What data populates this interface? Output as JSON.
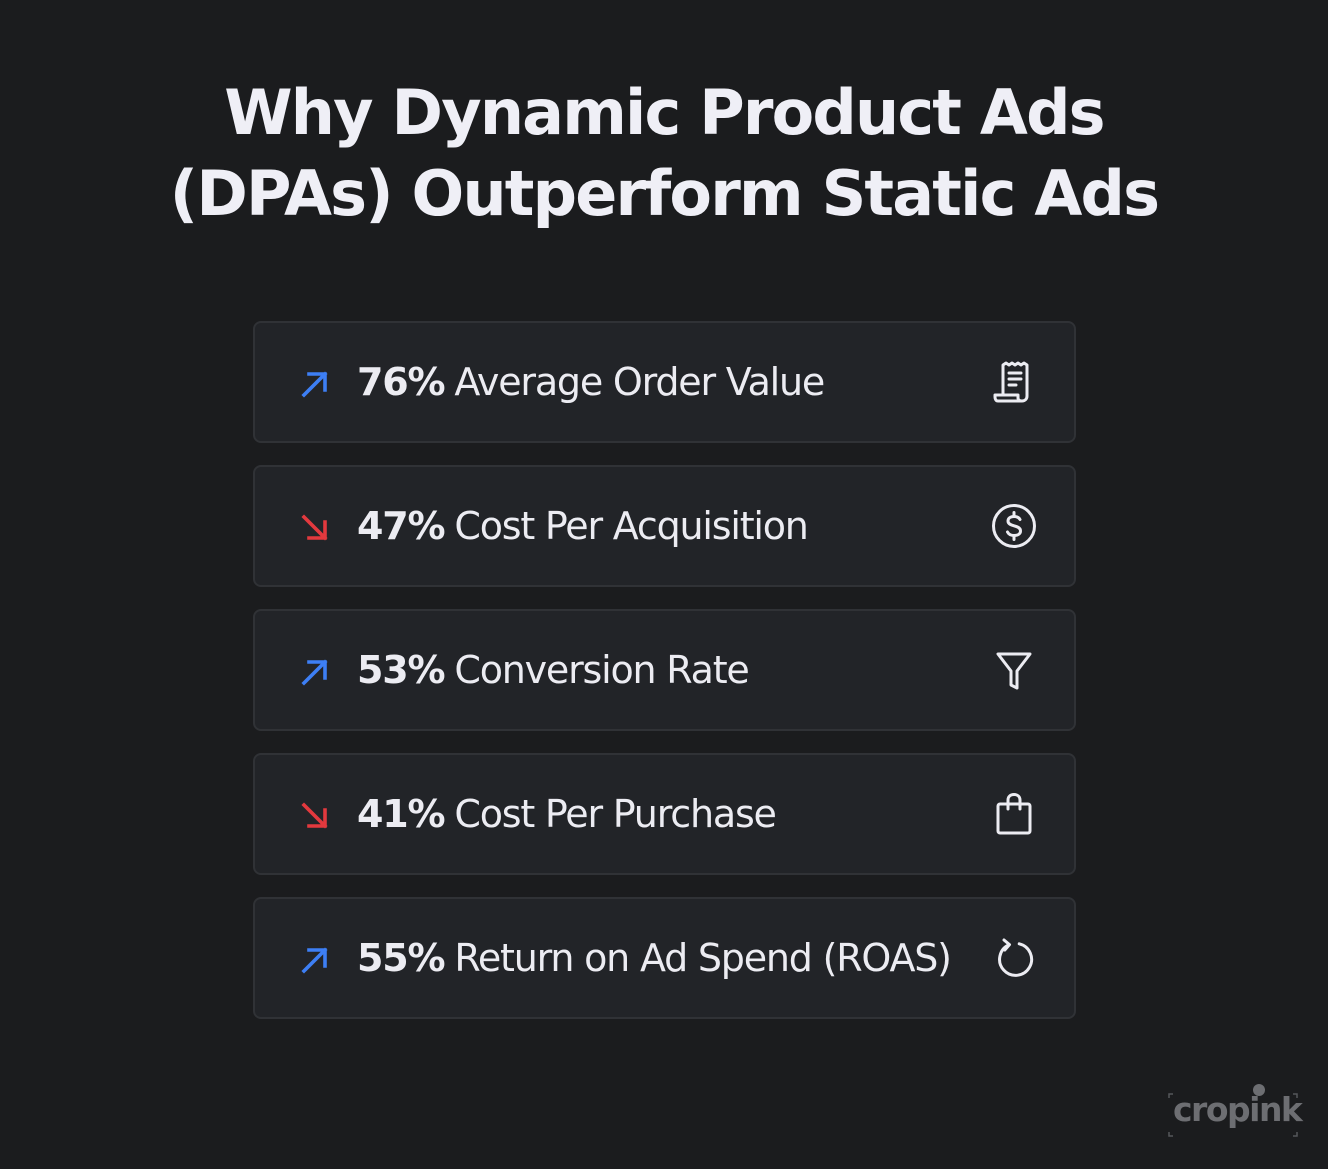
{
  "title": {
    "line1": "Why Dynamic Product Ads",
    "line2": "(DPAs) Outperform Static Ads"
  },
  "colors": {
    "background": "#1b1c1e",
    "card": "#222428",
    "card_border": "#303236",
    "up": "#3d7ff5",
    "down": "#e3393e",
    "icon": "#ececf2"
  },
  "metrics": [
    {
      "trend": "up",
      "trend_icon": "arrow-up-right-icon",
      "percent": "76%",
      "label": "Average Order Value",
      "icon": "receipt-icon"
    },
    {
      "trend": "down",
      "trend_icon": "arrow-down-right-icon",
      "percent": "47%",
      "label": "Cost Per Acquisition",
      "icon": "dollar-circle-icon"
    },
    {
      "trend": "up",
      "trend_icon": "arrow-up-right-icon",
      "percent": "53%",
      "label": "Conversion Rate",
      "icon": "funnel-icon"
    },
    {
      "trend": "down",
      "trend_icon": "arrow-down-right-icon",
      "percent": "41%",
      "label": "Cost Per Purchase",
      "icon": "shopping-bag-icon"
    },
    {
      "trend": "up",
      "trend_icon": "arrow-up-right-icon",
      "percent": "55%",
      "label": "Return on Ad Spend (ROAS)",
      "icon": "refresh-icon"
    }
  ],
  "brand": {
    "name": "cropink"
  }
}
